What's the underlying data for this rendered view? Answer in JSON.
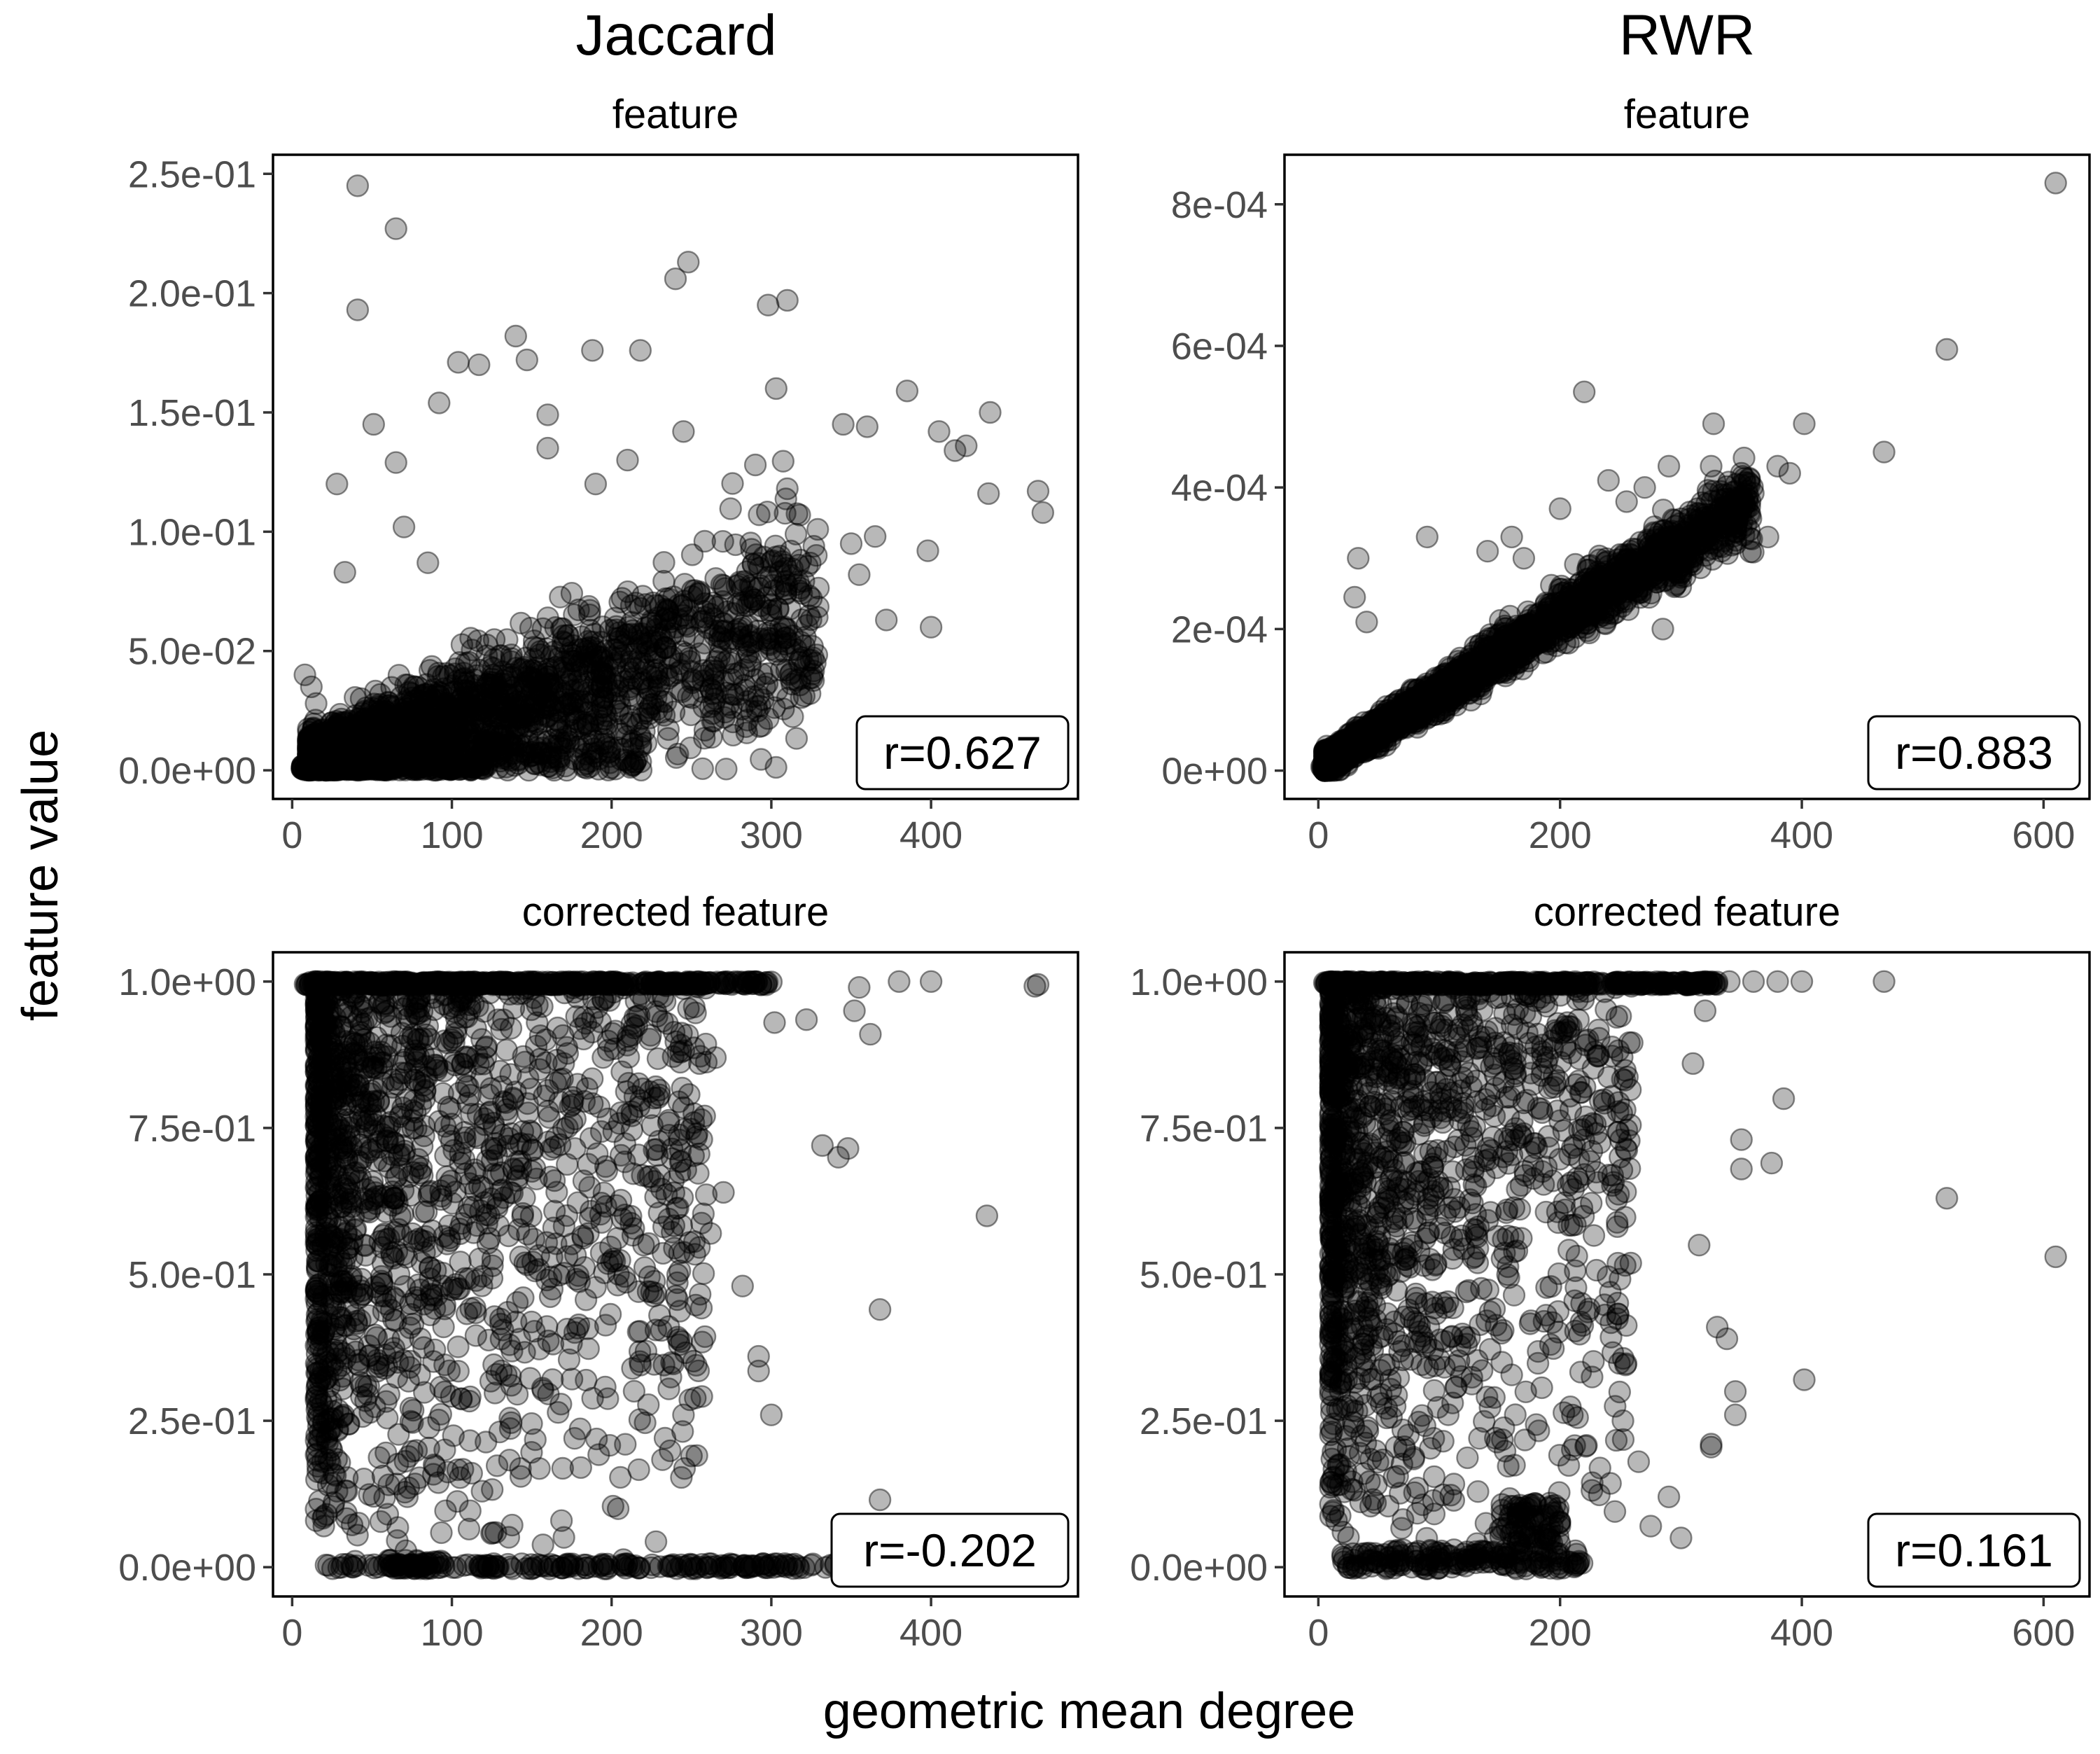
{
  "chart_data": {
    "type": "scatter",
    "columns": [
      "Jaccard",
      "RWR"
    ],
    "xlabel": "geometric mean degree",
    "ylabel": "feature value",
    "panels": [
      {
        "id": "jaccard-feature",
        "column": "Jaccard",
        "strip": "feature",
        "xlim": [
          -12,
          492
        ],
        "ylim": [
          -0.012,
          0.258
        ],
        "xticks": [
          0,
          100,
          200,
          300,
          400
        ],
        "xtick_labels": [
          "0",
          "100",
          "200",
          "300",
          "400"
        ],
        "yticks": [
          0,
          0.05,
          0.1,
          0.15,
          0.2,
          0.25
        ],
        "ytick_labels": [
          "0.0e+00",
          "5.0e-02",
          "1.0e-01",
          "1.5e-01",
          "2.0e-01",
          "2.5e-01"
        ],
        "r_label": "r=0.627",
        "points": [
          [
            41,
            0.245
          ],
          [
            65,
            0.227
          ],
          [
            41,
            0.193
          ],
          [
            248,
            0.213
          ],
          [
            240,
            0.206
          ],
          [
            310,
            0.197
          ],
          [
            298,
            0.195
          ],
          [
            218,
            0.176
          ],
          [
            188,
            0.176
          ],
          [
            140,
            0.182
          ],
          [
            104,
            0.171
          ],
          [
            117,
            0.17
          ],
          [
            147,
            0.172
          ],
          [
            92,
            0.154
          ],
          [
            51,
            0.145
          ],
          [
            28,
            0.12
          ],
          [
            65,
            0.129
          ],
          [
            160,
            0.149
          ],
          [
            245,
            0.142
          ],
          [
            385,
            0.159
          ],
          [
            437,
            0.15
          ],
          [
            360,
            0.144
          ],
          [
            303,
            0.16
          ],
          [
            345,
            0.145
          ],
          [
            422,
            0.136
          ],
          [
            405,
            0.142
          ],
          [
            467,
            0.117
          ],
          [
            436,
            0.116
          ],
          [
            470,
            0.108
          ],
          [
            415,
            0.134
          ],
          [
            398,
            0.092
          ],
          [
            365,
            0.098
          ],
          [
            310,
            0.118
          ],
          [
            290,
            0.128
          ],
          [
            350,
            0.095
          ],
          [
            355,
            0.082
          ],
          [
            400,
            0.06
          ],
          [
            372,
            0.063
          ],
          [
            300,
            0.065
          ],
          [
            280,
            0.078
          ],
          [
            33,
            0.083
          ],
          [
            70,
            0.102
          ],
          [
            85,
            0.087
          ],
          [
            210,
            0.13
          ],
          [
            190,
            0.12
          ],
          [
            160,
            0.135
          ],
          [
            12,
            0.035
          ],
          [
            8,
            0.04
          ],
          [
            15,
            0.028
          ],
          [
            20,
            0.011
          ],
          [
            25,
            0.02
          ],
          [
            290,
            0.038
          ],
          [
            275,
            0.045
          ],
          [
            265,
            0.03
          ],
          [
            225,
            0.035
          ],
          [
            175,
            0.028
          ],
          [
            130,
            0.03
          ]
        ],
        "clusters": [
          {
            "x_range": [
              6,
              22
            ],
            "y_range": [
              0,
              0.002
            ],
            "count": 90
          },
          {
            "x_range": [
              15,
              120
            ],
            "y_range": [
              0,
              0.003
            ],
            "count": 220
          },
          {
            "x_range": [
              20,
              220
            ],
            "y_range": [
              0,
              0.012
            ],
            "count": 200
          }
        ],
        "trend": {
          "slope": 0.000185,
          "intercept": 0.004,
          "spread_base": 0.006,
          "spread_slope": 9e-05,
          "x_range": [
            10,
            330
          ],
          "count": 1900
        }
      },
      {
        "id": "rwr-feature",
        "column": "RWR",
        "strip": "feature",
        "xlim": [
          -28,
          638
        ],
        "ylim": [
          -4e-05,
          0.00087
        ],
        "xticks": [
          0,
          200,
          400,
          600
        ],
        "xtick_labels": [
          "0",
          "200",
          "400",
          "600"
        ],
        "yticks": [
          0,
          0.0002,
          0.0004,
          0.0006,
          0.0008
        ],
        "ytick_labels": [
          "0e+00",
          "2e-04",
          "4e-04",
          "6e-04",
          "8e-04"
        ],
        "r_label": "r=0.883",
        "points": [
          [
            610,
            0.00083
          ],
          [
            520,
            0.000595
          ],
          [
            468,
            0.00045
          ],
          [
            402,
            0.00049
          ],
          [
            390,
            0.00042
          ],
          [
            380,
            0.00043
          ],
          [
            327,
            0.00049
          ],
          [
            350,
            0.00042
          ],
          [
            340,
            0.00038
          ],
          [
            372,
            0.00033
          ],
          [
            325,
            0.00043
          ],
          [
            290,
            0.00043
          ],
          [
            270,
            0.0004
          ],
          [
            220,
            0.000535
          ],
          [
            255,
            0.00038
          ],
          [
            240,
            0.00041
          ],
          [
            200,
            0.00037
          ],
          [
            170,
            0.0003
          ],
          [
            33,
            0.0003
          ],
          [
            30,
            0.000245
          ],
          [
            40,
            0.00021
          ],
          [
            90,
            0.00033
          ],
          [
            140,
            0.00031
          ],
          [
            160,
            0.00033
          ],
          [
            315,
            0.00032
          ],
          [
            300,
            0.00028
          ],
          [
            285,
            0.0002
          ]
        ],
        "clusters": [
          {
            "x_range": [
              2,
              14
            ],
            "y_range": [
              2e-06,
              1e-05
            ],
            "count": 30
          }
        ],
        "trend": {
          "slope": 1.05e-06,
          "intercept": 5e-06,
          "spread_base": 1e-05,
          "spread_slope": 9e-08,
          "x_range": [
            5,
            360
          ],
          "count": 2200
        }
      },
      {
        "id": "jaccard-corrected",
        "column": "Jaccard",
        "strip": "corrected feature",
        "xlim": [
          -12,
          492
        ],
        "ylim": [
          -0.05,
          1.05
        ],
        "xticks": [
          0,
          100,
          200,
          300,
          400
        ],
        "xtick_labels": [
          "0",
          "100",
          "200",
          "300",
          "400"
        ],
        "yticks": [
          0,
          0.25,
          0.5,
          0.75,
          1.0
        ],
        "ytick_labels": [
          "0.0e+00",
          "2.5e-01",
          "5.0e-01",
          "7.5e-01",
          "1.0e+00"
        ],
        "r_label": "r=-0.202",
        "points": [
          [
            467,
            0.995
          ],
          [
            465,
            0.992
          ],
          [
            400,
            1.0
          ],
          [
            380,
            1.0
          ],
          [
            355,
            0.99
          ],
          [
            362,
            0.91
          ],
          [
            352,
            0.95
          ],
          [
            332,
            0.72
          ],
          [
            342,
            0.7
          ],
          [
            348,
            0.715
          ],
          [
            302,
            0.93
          ],
          [
            322,
            0.935
          ],
          [
            270,
            0.64
          ],
          [
            262,
            0.57
          ],
          [
            282,
            0.48
          ],
          [
            435,
            0.6
          ],
          [
            368,
            0.44
          ],
          [
            368,
            0.115
          ],
          [
            292,
            0.36
          ],
          [
            292,
            0.335
          ],
          [
            300,
            0.26
          ],
          [
            250,
            0.19
          ],
          [
            245,
            0.26
          ],
          [
            230,
            0.43
          ],
          [
            220,
            0.55
          ],
          [
            255,
            0.86
          ],
          [
            265,
            0.87
          ]
        ],
        "clusters": [
          {
            "x_range": [
              6,
              300
            ],
            "y_range": [
              0.994,
              1.0
            ],
            "count": 420
          },
          {
            "x_range": [
              15,
              360
            ],
            "y_range": [
              -0.003,
              0.006
            ],
            "count": 200
          },
          {
            "x_range": [
              60,
              95
            ],
            "y_range": [
              -0.003,
              0.012
            ],
            "count": 40
          }
        ],
        "vfan": {
          "x_range": [
            15,
            260
          ],
          "y_range": [
            0,
            1
          ],
          "count": 1700
        }
      },
      {
        "id": "rwr-corrected",
        "column": "RWR",
        "strip": "corrected feature",
        "xlim": [
          -28,
          638
        ],
        "ylim": [
          -0.05,
          1.05
        ],
        "xticks": [
          0,
          200,
          400,
          600
        ],
        "xtick_labels": [
          "0",
          "200",
          "400",
          "600"
        ],
        "yticks": [
          0,
          0.25,
          0.5,
          0.75,
          1.0
        ],
        "ytick_labels": [
          "0.0e+00",
          "2.5e-01",
          "5.0e-01",
          "7.5e-01",
          "1.0e+00"
        ],
        "r_label": "r=0.161",
        "points": [
          [
            610,
            0.53
          ],
          [
            520,
            0.63
          ],
          [
            468,
            1.0
          ],
          [
            402,
            0.32
          ],
          [
            385,
            0.8
          ],
          [
            375,
            0.69
          ],
          [
            350,
            0.73
          ],
          [
            350,
            0.68
          ],
          [
            345,
            0.3
          ],
          [
            345,
            0.26
          ],
          [
            338,
            0.39
          ],
          [
            330,
            0.41
          ],
          [
            325,
            0.205
          ],
          [
            325,
            0.21
          ],
          [
            315,
            0.55
          ],
          [
            310,
            0.86
          ],
          [
            320,
            0.95
          ],
          [
            400,
            1.0
          ],
          [
            380,
            1.0
          ],
          [
            360,
            1.0
          ],
          [
            340,
            1.0
          ],
          [
            320,
            1.0
          ],
          [
            300,
            0.05
          ],
          [
            290,
            0.12
          ],
          [
            275,
            0.07
          ],
          [
            265,
            0.18
          ],
          [
            252,
            0.25
          ]
        ],
        "clusters": [
          {
            "x_range": [
              4,
              330
            ],
            "y_range": [
              0.994,
              1.0
            ],
            "count": 340
          },
          {
            "x_range": [
              20,
              220
            ],
            "y_range": [
              -0.003,
              0.03
            ],
            "count": 180
          },
          {
            "x_range": [
              150,
              200
            ],
            "y_range": [
              0.04,
              0.11
            ],
            "count": 80
          }
        ],
        "vfan": {
          "x_range": [
            10,
            260
          ],
          "y_range": [
            0,
            1
          ],
          "count": 1500
        }
      }
    ]
  }
}
